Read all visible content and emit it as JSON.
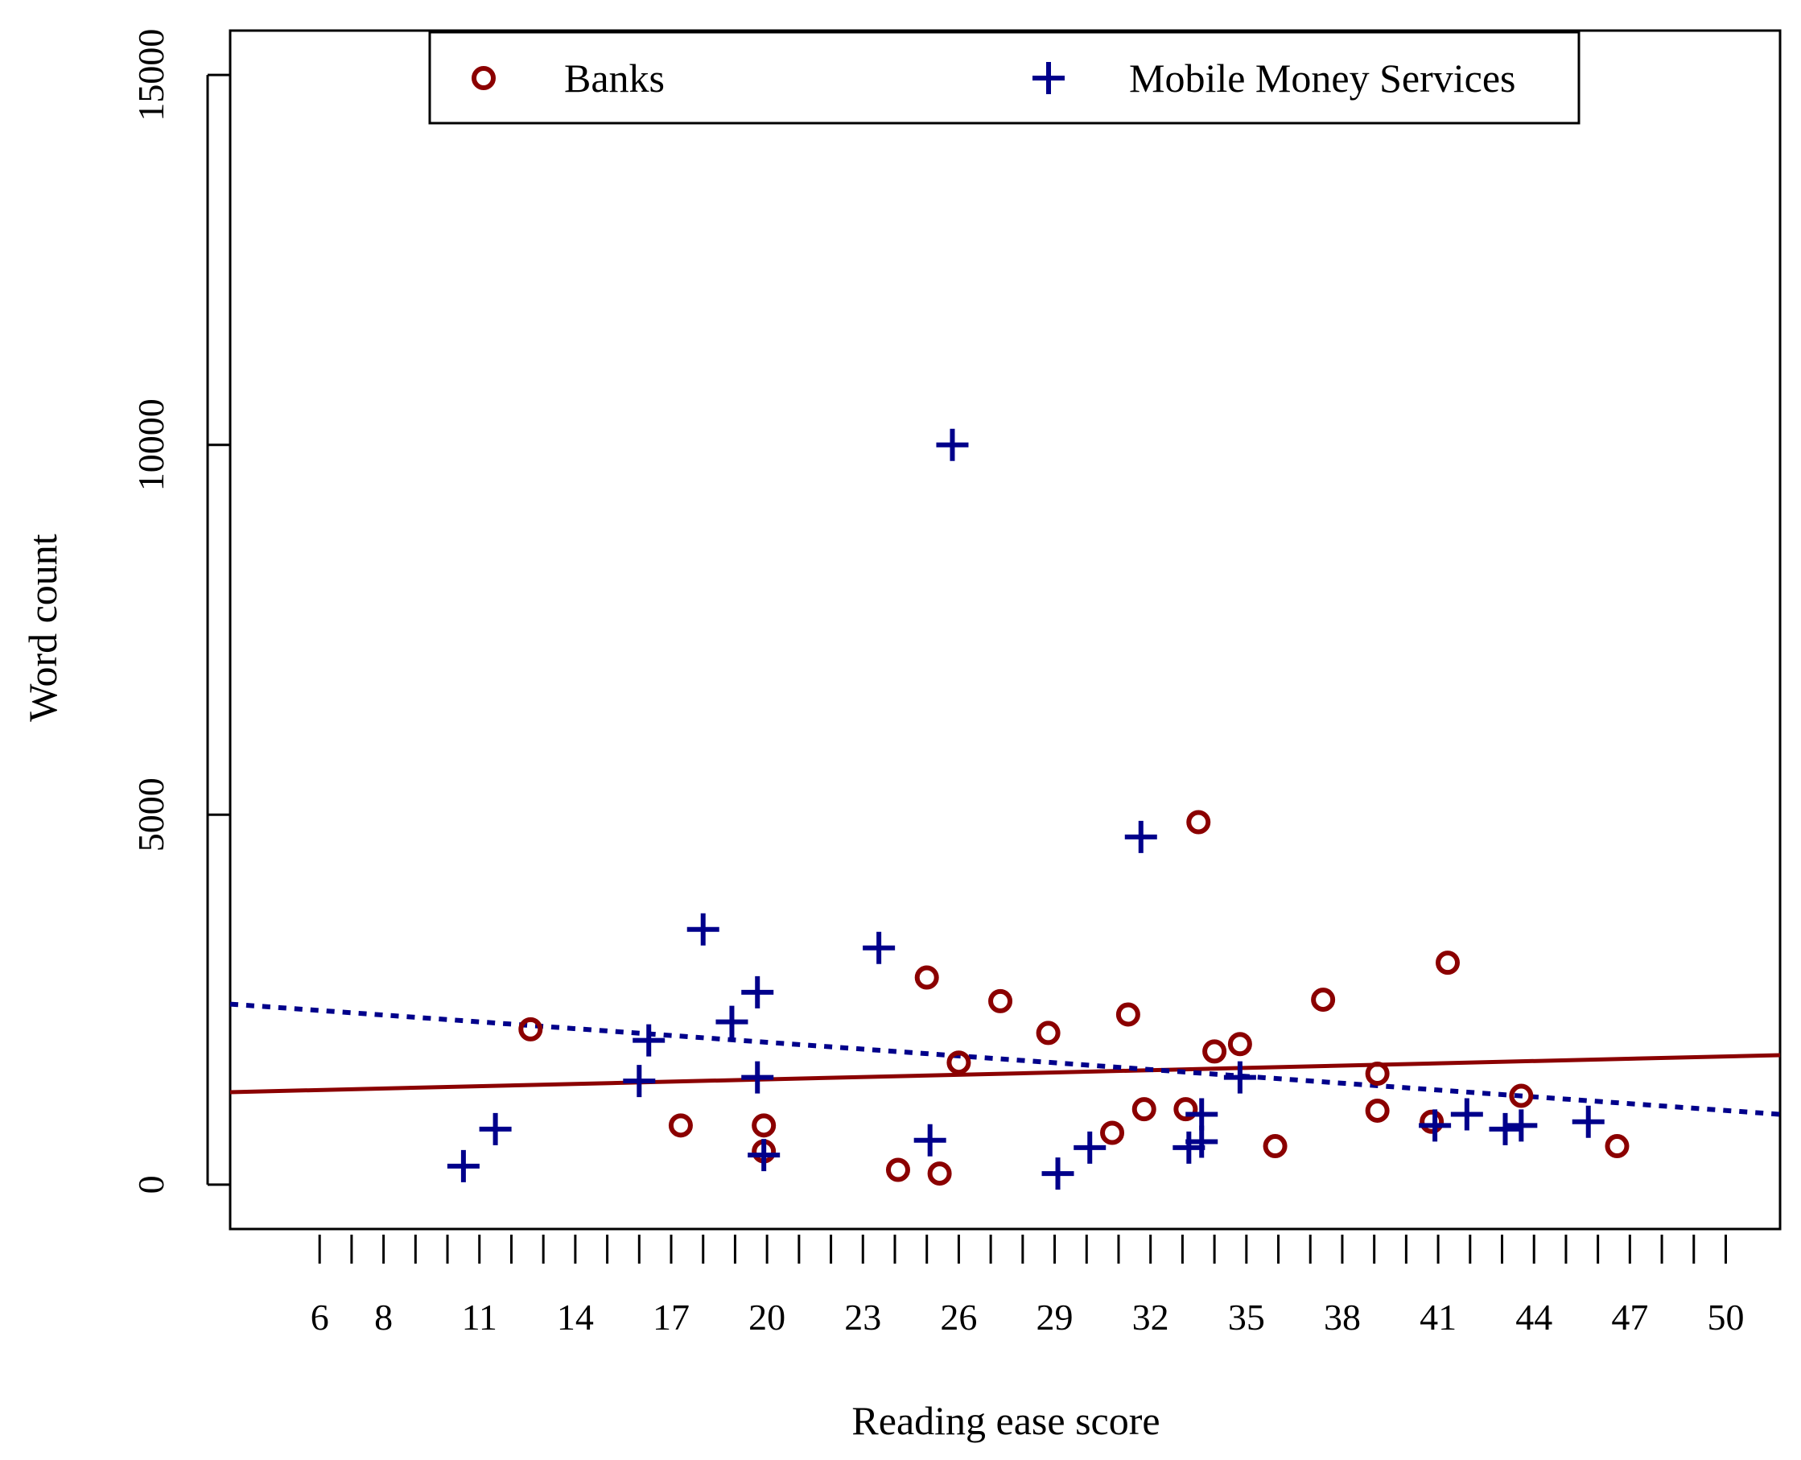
{
  "chart_data": {
    "type": "scatter",
    "title": "",
    "xlabel": "Reading ease score",
    "ylabel": "Word count",
    "xlim": [
      3.2,
      51.7
    ],
    "ylim": [
      -600,
      15600
    ],
    "x_ticks": [
      6,
      7,
      8,
      9,
      10,
      11,
      12,
      13,
      14,
      15,
      16,
      17,
      18,
      19,
      20,
      21,
      22,
      23,
      24,
      25,
      26,
      27,
      28,
      29,
      30,
      31,
      32,
      33,
      34,
      35,
      36,
      37,
      38,
      39,
      40,
      41,
      42,
      43,
      44,
      45,
      46,
      47,
      48,
      49,
      50
    ],
    "x_tick_labels": [
      "6",
      "8",
      "11",
      "14",
      "17",
      "20",
      "23",
      "26",
      "29",
      "32",
      "35",
      "38",
      "41",
      "44",
      "47",
      "50"
    ],
    "x_tick_label_values": [
      6,
      8,
      11,
      14,
      17,
      20,
      23,
      26,
      29,
      32,
      35,
      38,
      41,
      44,
      47,
      50
    ],
    "y_ticks": [
      0,
      5000,
      10000,
      15000
    ],
    "y_tick_labels": [
      "0",
      "5000",
      "10000",
      "15000"
    ],
    "legend": {
      "position": "top",
      "entries": [
        {
          "label": "Banks",
          "marker": "circle",
          "color": "#8B0000"
        },
        {
          "label": "Mobile Money Services",
          "marker": "plus",
          "color": "#00008B"
        }
      ]
    },
    "series": [
      {
        "name": "Banks",
        "marker": "circle",
        "color": "#8B0000",
        "points": [
          [
            12.6,
            2100
          ],
          [
            17.3,
            800
          ],
          [
            19.9,
            800
          ],
          [
            19.9,
            450
          ],
          [
            24.1,
            200
          ],
          [
            25.0,
            2800
          ],
          [
            25.4,
            150
          ],
          [
            26.0,
            1650
          ],
          [
            27.3,
            2480
          ],
          [
            28.8,
            2050
          ],
          [
            30.8,
            700
          ],
          [
            31.3,
            2300
          ],
          [
            31.8,
            1020
          ],
          [
            33.1,
            1020
          ],
          [
            33.5,
            4900
          ],
          [
            34.0,
            1800
          ],
          [
            34.8,
            1900
          ],
          [
            35.9,
            520
          ],
          [
            37.4,
            2500
          ],
          [
            39.1,
            1500
          ],
          [
            39.1,
            1000
          ],
          [
            40.8,
            850
          ],
          [
            41.3,
            3000
          ],
          [
            43.6,
            1200
          ],
          [
            46.6,
            520
          ]
        ]
      },
      {
        "name": "Mobile Money Services",
        "marker": "plus",
        "color": "#00008B",
        "points": [
          [
            10.5,
            250
          ],
          [
            11.5,
            750
          ],
          [
            16.0,
            1400
          ],
          [
            16.3,
            1950
          ],
          [
            18.0,
            3450
          ],
          [
            18.9,
            2200
          ],
          [
            19.7,
            2600
          ],
          [
            19.7,
            1450
          ],
          [
            19.9,
            400
          ],
          [
            23.5,
            3200
          ],
          [
            25.1,
            600
          ],
          [
            25.8,
            10000
          ],
          [
            29.1,
            150
          ],
          [
            30.1,
            500
          ],
          [
            31.7,
            4700
          ],
          [
            33.2,
            500
          ],
          [
            33.6,
            580
          ],
          [
            33.6,
            950
          ],
          [
            34.8,
            1450
          ],
          [
            40.9,
            800
          ],
          [
            41.9,
            950
          ],
          [
            43.1,
            750
          ],
          [
            43.6,
            800
          ],
          [
            45.7,
            850
          ]
        ]
      }
    ],
    "fit_lines": [
      {
        "name": "Banks trend",
        "color": "#8B0000",
        "style": "solid",
        "x": [
          3.2,
          51.7
        ],
        "y": [
          1250,
          1750
        ]
      },
      {
        "name": "Mobile Money Services trend",
        "color": "#00008B",
        "style": "dotted",
        "x": [
          3.2,
          51.7
        ],
        "y": [
          2440,
          950
        ]
      }
    ]
  }
}
